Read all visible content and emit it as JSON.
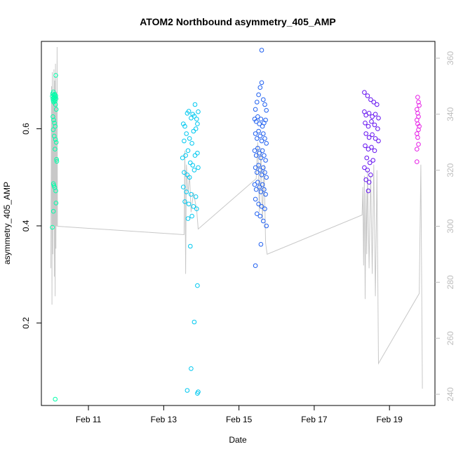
{
  "chart_data": {
    "type": "scatter",
    "title": "ATOM2 Northbound asymmetry_405_AMP",
    "xlabel": "Date",
    "ylabel": "asymmetry_405_AMP",
    "xlim": [
      "2024-02-09 18:00",
      "2024-02-20 05:00"
    ],
    "ylim": [
      0.03,
      0.78
    ],
    "x_ticks": [
      "Feb 11",
      "Feb 13",
      "Feb 15",
      "Feb 17",
      "Feb 19"
    ],
    "y_ticks": [
      0.2,
      0.4,
      0.6
    ],
    "y_tick_labels": [
      "0.2",
      "0.4",
      "0.6"
    ],
    "y2lim": [
      236,
      366
    ],
    "y2_ticks": [
      240,
      260,
      280,
      300,
      320,
      340,
      360
    ],
    "y2_tick_labels": [
      "240",
      "260",
      "280",
      "300",
      "320",
      "340",
      "360"
    ],
    "grid": false,
    "line_color": "#c8c8c8",
    "series": [
      {
        "color": "#00ffaa",
        "points": [
          [
            "2024-02-10 01:00",
            0.667
          ],
          [
            "2024-02-10 01:10",
            0.672
          ],
          [
            "2024-02-10 01:20",
            0.662
          ],
          [
            "2024-02-10 01:30",
            0.658
          ],
          [
            "2024-02-10 01:40",
            0.676
          ],
          [
            "2024-02-10 01:50",
            0.655
          ],
          [
            "2024-02-10 02:00",
            0.669
          ],
          [
            "2024-02-10 02:10",
            0.664
          ],
          [
            "2024-02-10 02:20",
            0.66
          ],
          [
            "2024-02-10 02:30",
            0.671
          ],
          [
            "2024-02-10 02:40",
            0.657
          ],
          [
            "2024-02-10 02:50",
            0.665
          ],
          [
            "2024-02-10 03:00",
            0.65
          ],
          [
            "2024-02-10 03:10",
            0.668
          ],
          [
            "2024-02-10 03:20",
            0.662
          ],
          [
            "2024-02-10 03:30",
            0.64
          ],
          [
            "2024-02-10 01:20",
            0.625
          ],
          [
            "2024-02-10 01:50",
            0.618
          ],
          [
            "2024-02-10 02:20",
            0.612
          ],
          [
            "2024-02-10 02:50",
            0.605
          ],
          [
            "2024-02-10 01:30",
            0.598
          ],
          [
            "2024-02-10 02:10",
            0.585
          ],
          [
            "2024-02-10 03:00",
            0.578
          ],
          [
            "2024-02-10 03:30",
            0.572
          ],
          [
            "2024-02-10 02:40",
            0.558
          ],
          [
            "2024-02-10 03:40",
            0.537
          ],
          [
            "2024-02-10 03:50",
            0.533
          ],
          [
            "2024-02-10 01:40",
            0.487
          ],
          [
            "2024-02-10 02:00",
            0.483
          ],
          [
            "2024-02-10 02:30",
            0.479
          ],
          [
            "2024-02-10 03:10",
            0.472
          ],
          [
            "2024-02-10 03:20",
            0.447
          ],
          [
            "2024-02-10 01:40",
            0.43
          ],
          [
            "2024-02-10 01:00",
            0.397
          ],
          [
            "2024-02-10 03:10",
            0.71
          ],
          [
            "2024-02-10 02:50",
            0.043
          ]
        ]
      },
      {
        "color": "#00c8f0",
        "points": [
          [
            "2024-02-13 12:30",
            0.61
          ],
          [
            "2024-02-13 13:30",
            0.605
          ],
          [
            "2024-02-13 15:00",
            0.632
          ],
          [
            "2024-02-13 16:00",
            0.636
          ],
          [
            "2024-02-13 17:30",
            0.622
          ],
          [
            "2024-02-13 18:30",
            0.63
          ],
          [
            "2024-02-13 19:30",
            0.626
          ],
          [
            "2024-02-13 20:00",
            0.65
          ],
          [
            "2024-02-13 21:00",
            0.62
          ],
          [
            "2024-02-13 22:00",
            0.635
          ],
          [
            "2024-02-13 13:00",
            0.575
          ],
          [
            "2024-02-13 14:30",
            0.59
          ],
          [
            "2024-02-13 16:30",
            0.58
          ],
          [
            "2024-02-13 18:00",
            0.57
          ],
          [
            "2024-02-13 19:00",
            0.595
          ],
          [
            "2024-02-13 20:30",
            0.6
          ],
          [
            "2024-02-13 21:30",
            0.61
          ],
          [
            "2024-02-13 12:00",
            0.54
          ],
          [
            "2024-02-13 14:00",
            0.545
          ],
          [
            "2024-02-13 15:30",
            0.555
          ],
          [
            "2024-02-13 17:00",
            0.53
          ],
          [
            "2024-02-13 18:30",
            0.525
          ],
          [
            "2024-02-13 20:00",
            0.545
          ],
          [
            "2024-02-13 21:30",
            0.55
          ],
          [
            "2024-02-13 13:00",
            0.51
          ],
          [
            "2024-02-13 15:00",
            0.505
          ],
          [
            "2024-02-13 16:30",
            0.5
          ],
          [
            "2024-02-13 19:30",
            0.515
          ],
          [
            "2024-02-13 22:00",
            0.52
          ],
          [
            "2024-02-13 12:30",
            0.48
          ],
          [
            "2024-02-13 14:30",
            0.47
          ],
          [
            "2024-02-13 17:30",
            0.465
          ],
          [
            "2024-02-13 20:30",
            0.46
          ],
          [
            "2024-02-13 13:30",
            0.45
          ],
          [
            "2024-02-13 16:00",
            0.445
          ],
          [
            "2024-02-13 19:00",
            0.44
          ],
          [
            "2024-02-13 21:00",
            0.435
          ],
          [
            "2024-02-13 18:00",
            0.42
          ],
          [
            "2024-02-13 15:30",
            0.415
          ],
          [
            "2024-02-13 17:00",
            0.358
          ],
          [
            "2024-02-13 21:30",
            0.277
          ],
          [
            "2024-02-13 19:30",
            0.202
          ],
          [
            "2024-02-13 17:30",
            0.106
          ],
          [
            "2024-02-13 15:00",
            0.061
          ],
          [
            "2024-02-13 22:00",
            0.058
          ],
          [
            "2024-02-13 21:30",
            0.055
          ]
        ]
      },
      {
        "color": "#2060f0",
        "points": [
          [
            "2024-02-15 10:30",
            0.64
          ],
          [
            "2024-02-15 11:30",
            0.655
          ],
          [
            "2024-02-15 12:30",
            0.67
          ],
          [
            "2024-02-15 13:30",
            0.685
          ],
          [
            "2024-02-15 14:30",
            0.695
          ],
          [
            "2024-02-15 15:30",
            0.66
          ],
          [
            "2024-02-15 16:30",
            0.65
          ],
          [
            "2024-02-15 17:30",
            0.638
          ],
          [
            "2024-02-15 10:00",
            0.62
          ],
          [
            "2024-02-15 11:00",
            0.615
          ],
          [
            "2024-02-15 12:00",
            0.625
          ],
          [
            "2024-02-15 13:00",
            0.61
          ],
          [
            "2024-02-15 14:00",
            0.62
          ],
          [
            "2024-02-15 15:00",
            0.605
          ],
          [
            "2024-02-15 16:00",
            0.612
          ],
          [
            "2024-02-15 17:00",
            0.618
          ],
          [
            "2024-02-15 10:30",
            0.59
          ],
          [
            "2024-02-15 11:30",
            0.58
          ],
          [
            "2024-02-15 12:30",
            0.595
          ],
          [
            "2024-02-15 13:30",
            0.585
          ],
          [
            "2024-02-15 14:30",
            0.575
          ],
          [
            "2024-02-15 15:30",
            0.59
          ],
          [
            "2024-02-15 16:30",
            0.58
          ],
          [
            "2024-02-15 17:30",
            0.57
          ],
          [
            "2024-02-15 10:00",
            0.555
          ],
          [
            "2024-02-15 11:00",
            0.545
          ],
          [
            "2024-02-15 12:00",
            0.56
          ],
          [
            "2024-02-15 13:00",
            0.55
          ],
          [
            "2024-02-15 14:00",
            0.54
          ],
          [
            "2024-02-15 15:00",
            0.555
          ],
          [
            "2024-02-15 16:00",
            0.545
          ],
          [
            "2024-02-15 17:00",
            0.535
          ],
          [
            "2024-02-15 10:30",
            0.52
          ],
          [
            "2024-02-15 11:30",
            0.51
          ],
          [
            "2024-02-15 12:30",
            0.525
          ],
          [
            "2024-02-15 13:30",
            0.515
          ],
          [
            "2024-02-15 14:30",
            0.505
          ],
          [
            "2024-02-15 15:30",
            0.52
          ],
          [
            "2024-02-15 16:30",
            0.51
          ],
          [
            "2024-02-15 17:30",
            0.5
          ],
          [
            "2024-02-15 10:00",
            0.485
          ],
          [
            "2024-02-15 11:00",
            0.475
          ],
          [
            "2024-02-15 12:00",
            0.49
          ],
          [
            "2024-02-15 13:00",
            0.48
          ],
          [
            "2024-02-15 14:00",
            0.47
          ],
          [
            "2024-02-15 15:00",
            0.485
          ],
          [
            "2024-02-15 16:00",
            0.475
          ],
          [
            "2024-02-15 17:00",
            0.465
          ],
          [
            "2024-02-15 10:30",
            0.455
          ],
          [
            "2024-02-15 12:30",
            0.445
          ],
          [
            "2024-02-15 14:30",
            0.44
          ],
          [
            "2024-02-15 16:30",
            0.435
          ],
          [
            "2024-02-15 11:30",
            0.425
          ],
          [
            "2024-02-15 13:30",
            0.42
          ],
          [
            "2024-02-15 15:30",
            0.41
          ],
          [
            "2024-02-15 17:30",
            0.4
          ],
          [
            "2024-02-15 14:00",
            0.362
          ],
          [
            "2024-02-15 10:30",
            0.318
          ],
          [
            "2024-02-15 14:30",
            0.762
          ]
        ]
      },
      {
        "color": "#6410f0",
        "points": [
          [
            "2024-02-18 08:00",
            0.675
          ],
          [
            "2024-02-18 10:00",
            0.668
          ],
          [
            "2024-02-18 12:00",
            0.66
          ],
          [
            "2024-02-18 14:00",
            0.655
          ],
          [
            "2024-02-18 16:00",
            0.65
          ],
          [
            "2024-02-18 08:00",
            0.635
          ],
          [
            "2024-02-18 09:00",
            0.628
          ],
          [
            "2024-02-18 11:00",
            0.632
          ],
          [
            "2024-02-18 13:00",
            0.625
          ],
          [
            "2024-02-18 15:00",
            0.63
          ],
          [
            "2024-02-18 17:00",
            0.622
          ],
          [
            "2024-02-18 08:30",
            0.612
          ],
          [
            "2024-02-18 10:30",
            0.605
          ],
          [
            "2024-02-18 12:30",
            0.615
          ],
          [
            "2024-02-18 14:30",
            0.608
          ],
          [
            "2024-02-18 16:30",
            0.6
          ],
          [
            "2024-02-18 09:00",
            0.59
          ],
          [
            "2024-02-18 11:00",
            0.582
          ],
          [
            "2024-02-18 13:00",
            0.588
          ],
          [
            "2024-02-18 15:00",
            0.58
          ],
          [
            "2024-02-18 17:00",
            0.575
          ],
          [
            "2024-02-18 08:30",
            0.565
          ],
          [
            "2024-02-18 10:30",
            0.558
          ],
          [
            "2024-02-18 12:30",
            0.562
          ],
          [
            "2024-02-18 14:30",
            0.555
          ],
          [
            "2024-02-18 09:30",
            0.54
          ],
          [
            "2024-02-18 11:30",
            0.53
          ],
          [
            "2024-02-18 13:30",
            0.535
          ],
          [
            "2024-02-18 08:00",
            0.52
          ],
          [
            "2024-02-18 10:00",
            0.515
          ],
          [
            "2024-02-18 12:00",
            0.505
          ],
          [
            "2024-02-18 09:00",
            0.495
          ],
          [
            "2024-02-18 11:00",
            0.49
          ],
          [
            "2024-02-18 10:30",
            0.472
          ]
        ]
      },
      {
        "color": "#e61ee6",
        "points": [
          [
            "2024-02-19 18:00",
            0.665
          ],
          [
            "2024-02-19 18:30",
            0.655
          ],
          [
            "2024-02-19 19:00",
            0.648
          ],
          [
            "2024-02-19 17:30",
            0.64
          ],
          [
            "2024-02-19 18:00",
            0.632
          ],
          [
            "2024-02-19 18:30",
            0.625
          ],
          [
            "2024-02-19 17:30",
            0.618
          ],
          [
            "2024-02-19 18:00",
            0.61
          ],
          [
            "2024-02-19 19:00",
            0.605
          ],
          [
            "2024-02-19 18:30",
            0.598
          ],
          [
            "2024-02-19 17:30",
            0.59
          ],
          [
            "2024-02-19 18:00",
            0.582
          ],
          [
            "2024-02-19 18:30",
            0.568
          ],
          [
            "2024-02-19 17:30",
            0.558
          ],
          [
            "2024-02-19 17:30",
            0.532
          ]
        ]
      }
    ],
    "line": [
      [
        "2024-02-10 00:00",
        285
      ],
      [
        "2024-02-10 00:30",
        350
      ],
      [
        "2024-02-10 00:45",
        272
      ],
      [
        "2024-02-10 01:00",
        355
      ],
      [
        "2024-02-10 01:15",
        290
      ],
      [
        "2024-02-10 01:30",
        345
      ],
      [
        "2024-02-10 01:45",
        300
      ],
      [
        "2024-02-10 02:00",
        356
      ],
      [
        "2024-02-10 02:15",
        282
      ],
      [
        "2024-02-10 02:30",
        352
      ],
      [
        "2024-02-10 02:45",
        275
      ],
      [
        "2024-02-10 03:00",
        358
      ],
      [
        "2024-02-10 03:15",
        292
      ],
      [
        "2024-02-10 03:30",
        348
      ],
      [
        "2024-02-10 03:45",
        300
      ],
      [
        "2024-02-10 04:00",
        364
      ],
      [
        "2024-02-10 04:15",
        300
      ],
      [
        "2024-02-13 13:00",
        297
      ],
      [
        "2024-02-13 13:30",
        327
      ],
      [
        "2024-02-13 14:00",
        283
      ],
      [
        "2024-02-13 14:30",
        322
      ],
      [
        "2024-02-13 15:30",
        312
      ],
      [
        "2024-02-13 16:30",
        318
      ],
      [
        "2024-02-13 17:30",
        305
      ],
      [
        "2024-02-13 19:00",
        312
      ],
      [
        "2024-02-13 21:00",
        306
      ],
      [
        "2024-02-13 22:00",
        299
      ],
      [
        "2024-02-15 11:00",
        317
      ],
      [
        "2024-02-15 12:00",
        330
      ],
      [
        "2024-02-15 13:00",
        305
      ],
      [
        "2024-02-15 14:00",
        328
      ],
      [
        "2024-02-15 15:00",
        302
      ],
      [
        "2024-02-15 16:00",
        322
      ],
      [
        "2024-02-15 17:00",
        294
      ],
      [
        "2024-02-15 18:00",
        290
      ],
      [
        "2024-02-18 06:30",
        304
      ],
      [
        "2024-02-18 07:00",
        314
      ],
      [
        "2024-02-18 07:30",
        286
      ],
      [
        "2024-02-18 08:00",
        318
      ],
      [
        "2024-02-18 08:30",
        274
      ],
      [
        "2024-02-18 09:00",
        312
      ],
      [
        "2024-02-18 09:30",
        290
      ],
      [
        "2024-02-18 10:00",
        320
      ],
      [
        "2024-02-18 11:00",
        285
      ],
      [
        "2024-02-18 12:00",
        318
      ],
      [
        "2024-02-18 13:00",
        283
      ],
      [
        "2024-02-18 14:00",
        322
      ],
      [
        "2024-02-18 15:00",
        275
      ],
      [
        "2024-02-18 16:00",
        320
      ],
      [
        "2024-02-18 17:00",
        251
      ],
      [
        "2024-02-19 19:00",
        276
      ],
      [
        "2024-02-19 20:00",
        322
      ],
      [
        "2024-02-19 21:00",
        242
      ]
    ]
  }
}
